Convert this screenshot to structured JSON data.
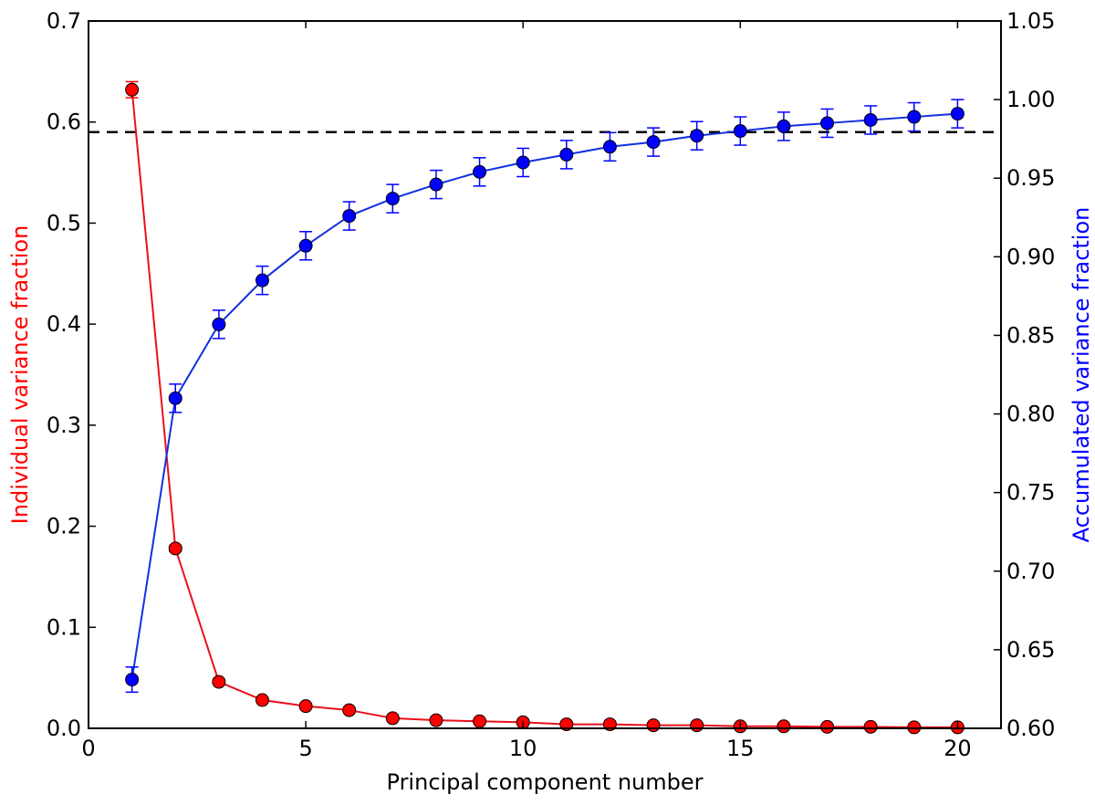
{
  "chart_data": {
    "type": "line",
    "title": "",
    "xlabel": "Principal component number",
    "ylabel_left": "Individual variance fraction",
    "ylabel_right": "Accumulated variance fraction",
    "xlim": [
      0,
      21
    ],
    "ylim_left": [
      0.0,
      0.7
    ],
    "ylim_right": [
      0.6,
      1.05
    ],
    "x_ticks": [
      0,
      5,
      10,
      15,
      20
    ],
    "x_tick_labels": [
      "0",
      "5",
      "10",
      "15",
      "20"
    ],
    "y_left_ticks": [
      0.0,
      0.1,
      0.2,
      0.3,
      0.4,
      0.5,
      0.6,
      0.7
    ],
    "y_left_tick_labels": [
      "0.0",
      "0.1",
      "0.2",
      "0.3",
      "0.4",
      "0.5",
      "0.6",
      "0.7"
    ],
    "y_right_ticks": [
      0.6,
      0.65,
      0.7,
      0.75,
      0.8,
      0.85,
      0.9,
      0.95,
      1.0,
      1.05
    ],
    "y_right_tick_labels": [
      "0.60",
      "0.65",
      "0.70",
      "0.75",
      "0.80",
      "0.85",
      "0.90",
      "0.95",
      "1.00",
      "1.05"
    ],
    "x": [
      1,
      2,
      3,
      4,
      5,
      6,
      7,
      8,
      9,
      10,
      11,
      12,
      13,
      14,
      15,
      16,
      17,
      18,
      19,
      20
    ],
    "series": [
      {
        "axis": "left",
        "color": "#ff0000",
        "line_color": "#e8101a",
        "values": [
          0.632,
          0.178,
          0.046,
          0.028,
          0.022,
          0.018,
          0.01,
          0.008,
          0.007,
          0.006,
          0.004,
          0.004,
          0.003,
          0.003,
          0.002,
          0.002,
          0.0015,
          0.0015,
          0.001,
          0.001
        ],
        "errors": [
          0.008,
          0.003,
          0.002,
          0.001,
          0.001,
          0.001,
          0.0005,
          0.0005,
          0.0005,
          0.0005,
          0.0005,
          0.0005,
          0.0005,
          0.0005,
          0.0005,
          0.0005,
          0.0005,
          0.0005,
          0.0005,
          0.0005
        ]
      },
      {
        "axis": "right",
        "color": "#0000ff",
        "line_color": "#1030e0",
        "values": [
          0.631,
          0.81,
          0.857,
          0.885,
          0.907,
          0.926,
          0.937,
          0.946,
          0.954,
          0.96,
          0.965,
          0.97,
          0.973,
          0.977,
          0.98,
          0.983,
          0.985,
          0.987,
          0.989,
          0.991
        ],
        "errors": [
          0.008,
          0.009,
          0.009,
          0.009,
          0.009,
          0.009,
          0.009,
          0.009,
          0.009,
          0.009,
          0.009,
          0.009,
          0.009,
          0.009,
          0.009,
          0.009,
          0.009,
          0.009,
          0.009,
          0.009
        ]
      }
    ],
    "reference_line": {
      "axis": "left",
      "y": 0.59,
      "style": "dashed",
      "color": "#000000"
    },
    "grid": false,
    "legend": "none",
    "label_colors": {
      "left": "#ff0000",
      "right": "#0000ff"
    }
  }
}
